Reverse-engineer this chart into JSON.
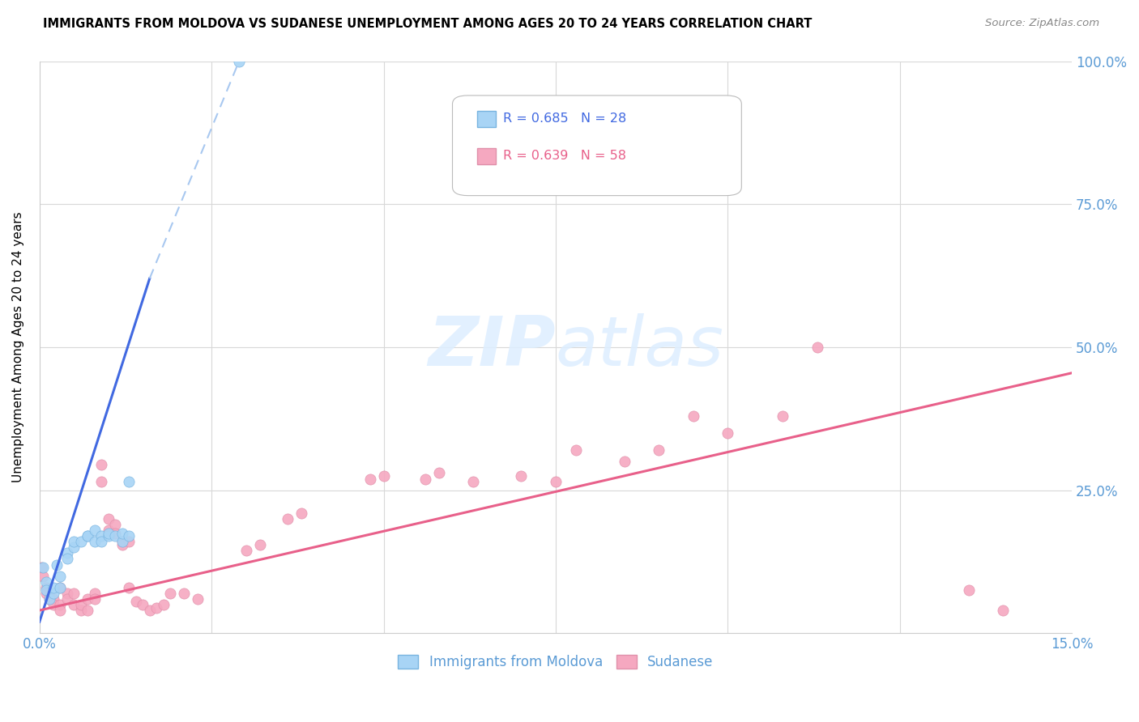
{
  "title": "IMMIGRANTS FROM MOLDOVA VS SUDANESE UNEMPLOYMENT AMONG AGES 20 TO 24 YEARS CORRELATION CHART",
  "source": "Source: ZipAtlas.com",
  "ylabel": "Unemployment Among Ages 20 to 24 years",
  "xlim": [
    0.0,
    0.15
  ],
  "ylim": [
    0.0,
    1.0
  ],
  "legend_r1": "R = 0.685",
  "legend_n1": "N = 28",
  "legend_r2": "R = 0.639",
  "legend_n2": "N = 58",
  "moldova_color": "#a8d4f5",
  "sudanese_color": "#f5a8c0",
  "moldova_line_color": "#4169E1",
  "sudanese_line_color": "#e8608a",
  "moldova_dashed_color": "#a8c8f0",
  "grid_color": "#d8d8d8",
  "tick_color": "#5b9bd5",
  "moldova_scatter": [
    [
      0.0005,
      0.115
    ],
    [
      0.001,
      0.09
    ],
    [
      0.001,
      0.075
    ],
    [
      0.0015,
      0.06
    ],
    [
      0.002,
      0.07
    ],
    [
      0.002,
      0.08
    ],
    [
      0.0025,
      0.12
    ],
    [
      0.003,
      0.1
    ],
    [
      0.003,
      0.08
    ],
    [
      0.004,
      0.14
    ],
    [
      0.004,
      0.13
    ],
    [
      0.005,
      0.15
    ],
    [
      0.005,
      0.16
    ],
    [
      0.006,
      0.16
    ],
    [
      0.007,
      0.17
    ],
    [
      0.007,
      0.17
    ],
    [
      0.008,
      0.18
    ],
    [
      0.008,
      0.16
    ],
    [
      0.009,
      0.17
    ],
    [
      0.009,
      0.16
    ],
    [
      0.01,
      0.17
    ],
    [
      0.01,
      0.175
    ],
    [
      0.011,
      0.17
    ],
    [
      0.012,
      0.16
    ],
    [
      0.012,
      0.175
    ],
    [
      0.013,
      0.17
    ],
    [
      0.013,
      0.265
    ],
    [
      0.029,
      1.0
    ]
  ],
  "sudanese_scatter": [
    [
      0.0003,
      0.115
    ],
    [
      0.0005,
      0.1
    ],
    [
      0.001,
      0.08
    ],
    [
      0.001,
      0.07
    ],
    [
      0.0015,
      0.06
    ],
    [
      0.002,
      0.06
    ],
    [
      0.002,
      0.05
    ],
    [
      0.003,
      0.05
    ],
    [
      0.003,
      0.04
    ],
    [
      0.003,
      0.08
    ],
    [
      0.004,
      0.07
    ],
    [
      0.004,
      0.06
    ],
    [
      0.005,
      0.05
    ],
    [
      0.005,
      0.07
    ],
    [
      0.006,
      0.04
    ],
    [
      0.006,
      0.05
    ],
    [
      0.007,
      0.04
    ],
    [
      0.007,
      0.06
    ],
    [
      0.008,
      0.07
    ],
    [
      0.008,
      0.06
    ],
    [
      0.009,
      0.295
    ],
    [
      0.009,
      0.265
    ],
    [
      0.01,
      0.2
    ],
    [
      0.01,
      0.18
    ],
    [
      0.011,
      0.19
    ],
    [
      0.011,
      0.175
    ],
    [
      0.012,
      0.16
    ],
    [
      0.012,
      0.155
    ],
    [
      0.013,
      0.16
    ],
    [
      0.013,
      0.08
    ],
    [
      0.014,
      0.055
    ],
    [
      0.015,
      0.05
    ],
    [
      0.016,
      0.04
    ],
    [
      0.017,
      0.045
    ],
    [
      0.018,
      0.05
    ],
    [
      0.019,
      0.07
    ],
    [
      0.021,
      0.07
    ],
    [
      0.023,
      0.06
    ],
    [
      0.03,
      0.145
    ],
    [
      0.032,
      0.155
    ],
    [
      0.036,
      0.2
    ],
    [
      0.038,
      0.21
    ],
    [
      0.048,
      0.27
    ],
    [
      0.05,
      0.275
    ],
    [
      0.056,
      0.27
    ],
    [
      0.058,
      0.28
    ],
    [
      0.063,
      0.265
    ],
    [
      0.07,
      0.275
    ],
    [
      0.075,
      0.265
    ],
    [
      0.078,
      0.32
    ],
    [
      0.085,
      0.3
    ],
    [
      0.09,
      0.32
    ],
    [
      0.095,
      0.38
    ],
    [
      0.1,
      0.35
    ],
    [
      0.108,
      0.38
    ],
    [
      0.113,
      0.5
    ],
    [
      0.135,
      0.075
    ],
    [
      0.14,
      0.04
    ]
  ],
  "moldova_trendline_solid": [
    [
      0.0,
      0.02
    ],
    [
      0.016,
      0.62
    ]
  ],
  "moldova_trendline_dashed": [
    [
      0.016,
      0.62
    ],
    [
      0.029,
      1.0
    ]
  ],
  "sudanese_trendline": [
    [
      0.0,
      0.04
    ],
    [
      0.15,
      0.455
    ]
  ]
}
